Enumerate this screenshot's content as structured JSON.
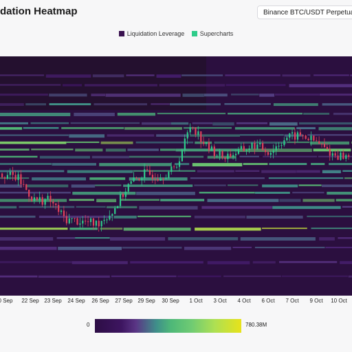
{
  "header": {
    "title": "dation Heatmap",
    "pair": "Binance BTC/USDT Perpetual"
  },
  "legend": [
    {
      "label": "Liquidation Leverage",
      "color": "#3a1250"
    },
    {
      "label": "Supercharts",
      "color": "#2ecc8a"
    }
  ],
  "colorscale": {
    "min_label": "0",
    "max_label": "780.38M",
    "stops": [
      "#2d0d45",
      "#3d1560",
      "#5a3585",
      "#3f8f8a",
      "#4eb878",
      "#6fcb73",
      "#aee052",
      "#e8e21a"
    ]
  },
  "chart_data": {
    "type": "heatmap",
    "title": "",
    "x_ticks": [
      "0 Sep",
      "22 Sep",
      "23 Sep",
      "24 Sep",
      "26 Sep",
      "27 Sep",
      "29 Sep",
      "30 Sep",
      "1 Oct",
      "3 Oct",
      "4 Oct",
      "6 Oct",
      "7 Oct",
      "9 Oct",
      "10 Oct"
    ],
    "x_start": "20 Sep",
    "x_end": "11 Oct",
    "background_color": "#2b0f3f",
    "candle_up_color": "#2ecc8a",
    "candle_down_color": "#e0405a",
    "price_path": [
      {
        "date": "20 Sep",
        "price": 51
      },
      {
        "date": "21 Sep",
        "price": 49
      },
      {
        "date": "22 Sep",
        "price": 40
      },
      {
        "date": "23 Sep",
        "price": 40
      },
      {
        "date": "24 Sep",
        "price": 32
      },
      {
        "date": "25 Sep",
        "price": 31
      },
      {
        "date": "26 Sep",
        "price": 30
      },
      {
        "date": "27 Sep",
        "price": 35
      },
      {
        "date": "28 Sep",
        "price": 46
      },
      {
        "date": "29 Sep",
        "price": 51
      },
      {
        "date": "30 Sep",
        "price": 50
      },
      {
        "date": "1 Oct",
        "price": 53
      },
      {
        "date": "1.5 Oct",
        "price": 72
      },
      {
        "date": "2 Oct",
        "price": 62
      },
      {
        "date": "3 Oct",
        "price": 58
      },
      {
        "date": "4 Oct",
        "price": 60
      },
      {
        "date": "5 Oct",
        "price": 63
      },
      {
        "date": "6 Oct",
        "price": 60
      },
      {
        "date": "7 Oct",
        "price": 66
      },
      {
        "date": "8 Oct",
        "price": 67
      },
      {
        "date": "9 Oct",
        "price": 64
      },
      {
        "date": "10 Oct",
        "price": 59
      },
      {
        "date": "11 Oct",
        "price": 58
      }
    ],
    "liquidation_bands": [
      {
        "price": 92,
        "intensity": 0.3
      },
      {
        "price": 88,
        "intensity": 0.25
      },
      {
        "price": 84,
        "intensity": 0.35
      },
      {
        "price": 80,
        "intensity": 0.45
      },
      {
        "price": 76,
        "intensity": 0.55
      },
      {
        "price": 72,
        "intensity": 0.4
      },
      {
        "price": 70,
        "intensity": 0.6
      },
      {
        "price": 67,
        "intensity": 0.5
      },
      {
        "price": 64,
        "intensity": 0.75
      },
      {
        "price": 61,
        "intensity": 0.65
      },
      {
        "price": 58,
        "intensity": 0.55
      },
      {
        "price": 55,
        "intensity": 0.7
      },
      {
        "price": 52,
        "intensity": 0.45
      },
      {
        "price": 49,
        "intensity": 0.6
      },
      {
        "price": 46,
        "intensity": 0.55
      },
      {
        "price": 43,
        "intensity": 0.5
      },
      {
        "price": 40,
        "intensity": 0.65
      },
      {
        "price": 37,
        "intensity": 0.45
      },
      {
        "price": 33,
        "intensity": 0.55
      },
      {
        "price": 28,
        "intensity": 0.8
      },
      {
        "price": 24,
        "intensity": 0.45
      },
      {
        "price": 20,
        "intensity": 0.35
      },
      {
        "price": 14,
        "intensity": 0.3
      },
      {
        "price": 8,
        "intensity": 0.25
      }
    ]
  }
}
